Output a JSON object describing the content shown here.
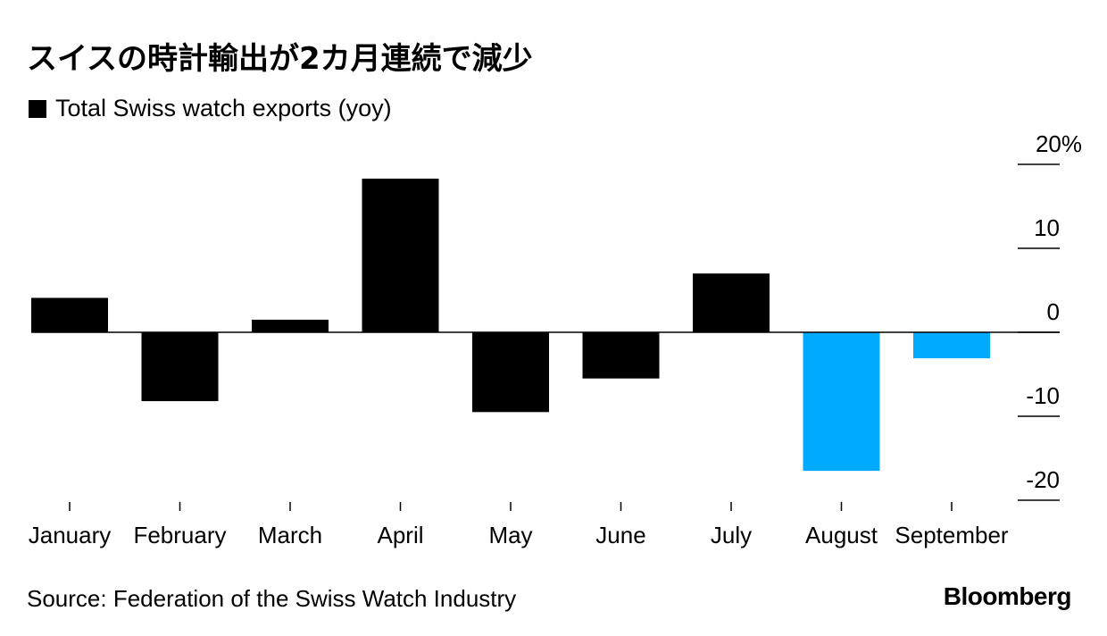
{
  "header": {
    "title": "スイスの時計輸出が2カ月連続で減少"
  },
  "footer": {
    "source": "Source: Federation of the Swiss Watch Industry",
    "brand": "Bloomberg"
  },
  "chart_data": {
    "type": "bar",
    "title": "スイスの時計輸出が2カ月連続で減少",
    "legend": [
      "Total Swiss watch exports (yoy)"
    ],
    "legend_placement": "top-left",
    "categories": [
      "January",
      "February",
      "March",
      "April",
      "May",
      "June",
      "July",
      "August",
      "September"
    ],
    "series": [
      {
        "name": "Total Swiss watch exports (yoy)",
        "values": [
          4.1,
          -8.2,
          1.5,
          18.3,
          -9.5,
          -5.5,
          7.0,
          -16.5,
          -3.1
        ]
      }
    ],
    "highlight_categories": [
      "August",
      "September"
    ],
    "colors": {
      "default": "#000000",
      "highlight": "#00aaff",
      "zero_line": "#000000",
      "tick": "#000000"
    },
    "ylim": [
      -20,
      20
    ],
    "yticks": [
      {
        "value": 20,
        "label": "20%"
      },
      {
        "value": 10,
        "label": "10"
      },
      {
        "value": 0,
        "label": "0"
      },
      {
        "value": -10,
        "label": "-10"
      },
      {
        "value": -20,
        "label": "-20"
      }
    ],
    "y_axis_position": "right",
    "grid": false,
    "xlabel": "",
    "ylabel": ""
  }
}
